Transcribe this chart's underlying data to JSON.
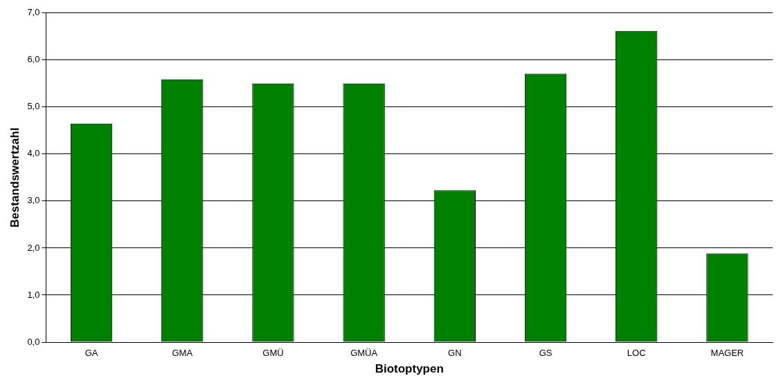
{
  "chart_data": {
    "type": "bar",
    "xlabel": "Biotoptypen",
    "ylabel": "Bestandswertzahl",
    "categories": [
      "GA",
      "GMA",
      "GMÜ",
      "GMÜA",
      "GN",
      "GS",
      "LOC",
      "MAGER"
    ],
    "values": [
      4.65,
      5.59,
      5.5,
      5.5,
      3.23,
      5.71,
      6.62,
      1.89
    ],
    "color": "#008000",
    "ylim": [
      0,
      7
    ],
    "yticks": [
      {
        "value": 0,
        "label": "0,0"
      },
      {
        "value": 1,
        "label": "1,0"
      },
      {
        "value": 2,
        "label": "2,0"
      },
      {
        "value": 3,
        "label": "3,0"
      },
      {
        "value": 4,
        "label": "4,0"
      },
      {
        "value": 5,
        "label": "5,0"
      },
      {
        "value": 6,
        "label": "6,0"
      },
      {
        "value": 7,
        "label": "7,0"
      }
    ],
    "grid": "y",
    "legend": false
  }
}
